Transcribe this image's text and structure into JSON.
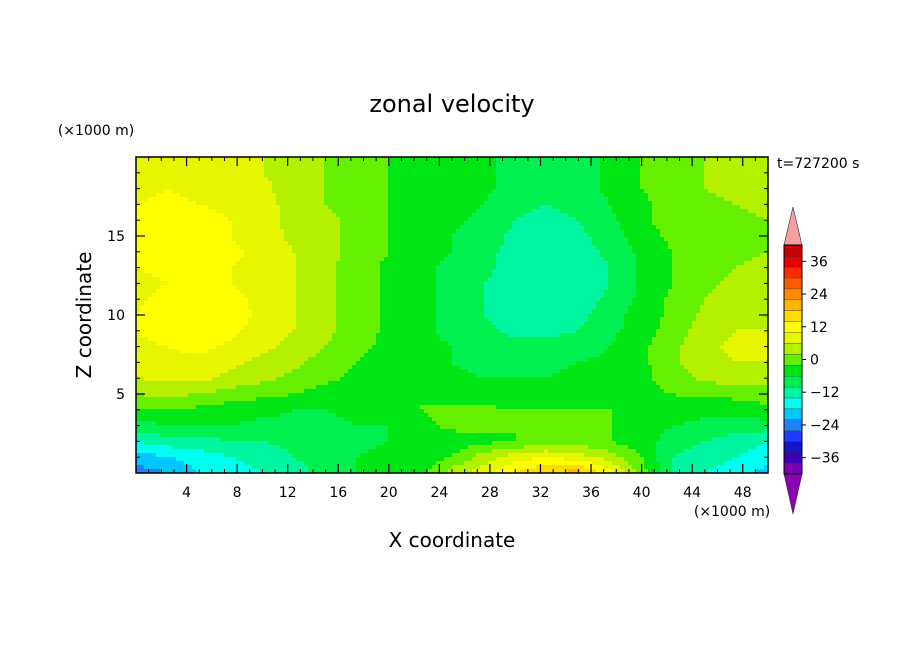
{
  "chart_data": {
    "type": "heatmap",
    "title": "zonal velocity",
    "xlabel": "X coordinate",
    "ylabel": "Z coordinate",
    "x_unit": "(×1000 m)",
    "y_unit": "(×1000 m)",
    "time_label": "t=727200 s",
    "xlim": [
      0,
      50
    ],
    "ylim": [
      0,
      20
    ],
    "x_ticks": [
      4,
      8,
      12,
      16,
      20,
      24,
      28,
      32,
      36,
      40,
      44,
      48
    ],
    "y_ticks": [
      5,
      10,
      15
    ],
    "colorbar": {
      "min": -42,
      "max": 42,
      "step": 4,
      "tick_values": [
        36,
        24,
        12,
        0,
        -12,
        -24,
        -36
      ],
      "tick_labels": [
        "36",
        "24",
        "12",
        "0",
        "−12",
        "−24",
        "−36"
      ],
      "colors": [
        "#7a00b4",
        "#3c00b4",
        "#1414c8",
        "#1e3cff",
        "#1e82ff",
        "#00c8ff",
        "#00fff0",
        "#00f5a0",
        "#00f050",
        "#00e614",
        "#64f000",
        "#b4f000",
        "#e6f500",
        "#ffff00",
        "#ffdc00",
        "#ffb400",
        "#ff8c00",
        "#ff5a00",
        "#ff2800",
        "#e60000",
        "#c80000"
      ],
      "under_color": "#8c00b4",
      "over_color": "#f4a0a0"
    },
    "field_description_values": {
      "x": [
        0,
        2.5,
        5,
        7.5,
        10,
        12.5,
        15,
        17.5,
        20,
        22.5,
        25,
        27.5,
        30,
        32.5,
        35,
        37.5,
        40,
        42.5,
        45,
        47.5,
        50
      ],
      "z": [
        0,
        1,
        2,
        3,
        4,
        5,
        6,
        7,
        8,
        9,
        10,
        11,
        12,
        13,
        14,
        15,
        16,
        17,
        18,
        19,
        20
      ],
      "values": [
        [
          -24,
          -22,
          -18,
          -16,
          -14,
          -12,
          -8,
          -6,
          -5,
          -4,
          4,
          8,
          14,
          18,
          20,
          12,
          0,
          -10,
          -14,
          -16,
          -20
        ],
        [
          -20,
          -18,
          -16,
          -14,
          -12,
          -10,
          -8,
          -6,
          -5,
          -4,
          -2,
          4,
          8,
          10,
          8,
          4,
          -2,
          -10,
          -12,
          -14,
          -16
        ],
        [
          -14,
          -12,
          -12,
          -10,
          -10,
          -9,
          -8,
          -7,
          -6,
          -5,
          -4,
          -3,
          -2,
          0,
          0,
          -2,
          -4,
          -8,
          -10,
          -12,
          -14
        ],
        [
          -8,
          -6,
          -6,
          -6,
          -7,
          -7,
          -7,
          -6,
          -6,
          -3,
          -1,
          -1,
          -2,
          -2,
          -2,
          -2,
          -4,
          -6,
          -7,
          -8,
          -8
        ],
        [
          -2,
          -2,
          -3,
          -4,
          -5,
          -6,
          -6,
          -5,
          -4,
          -2,
          -1,
          -1,
          -2,
          -2,
          -2,
          -2,
          -3,
          -4,
          -5,
          -4,
          -3
        ],
        [
          2,
          3,
          2,
          0,
          -1,
          -2,
          -4,
          -5,
          -4,
          -2,
          -4,
          -5,
          -4,
          -4,
          -4,
          -4,
          -3,
          -2,
          -1,
          -1,
          0
        ],
        [
          6,
          7,
          7,
          5,
          3,
          1,
          -1,
          -3,
          -4,
          -4,
          -5,
          -6,
          -6,
          -6,
          -5,
          -4,
          -3,
          0,
          3,
          4,
          4
        ],
        [
          8,
          9,
          9,
          7,
          5,
          3,
          0,
          -2,
          -4,
          -5,
          -6,
          -7,
          -7,
          -7,
          -6,
          -5,
          -3,
          1,
          5,
          6,
          6
        ],
        [
          9,
          10,
          11,
          9,
          7,
          5,
          2,
          -1,
          -3,
          -5,
          -6,
          -8,
          -9,
          -9,
          -8,
          -6,
          -3,
          1,
          5,
          7,
          6
        ],
        [
          10,
          12,
          13,
          11,
          8,
          6,
          3,
          0,
          -3,
          -5,
          -7,
          -9,
          -11,
          -11,
          -10,
          -7,
          -4,
          0,
          4,
          6,
          6
        ],
        [
          10,
          13,
          14,
          12,
          9,
          6,
          3,
          0,
          -3,
          -5,
          -7,
          -10,
          -13,
          -13,
          -11,
          -8,
          -4,
          -1,
          3,
          5,
          6
        ],
        [
          9,
          12,
          13,
          11,
          9,
          6,
          3,
          0,
          -3,
          -5,
          -7,
          -10,
          -13,
          -14,
          -12,
          -9,
          -5,
          -1,
          2,
          4,
          5
        ],
        [
          8,
          10,
          11,
          10,
          8,
          6,
          3,
          0,
          -3,
          -5,
          -7,
          -10,
          -12,
          -14,
          -13,
          -10,
          -5,
          -2,
          1,
          3,
          4
        ],
        [
          10,
          12,
          12,
          10,
          8,
          6,
          3,
          0,
          -3,
          -5,
          -7,
          -9,
          -12,
          -13,
          -13,
          -10,
          -5,
          -2,
          1,
          2,
          3
        ],
        [
          12,
          14,
          13,
          11,
          9,
          6,
          3,
          1,
          -2,
          -4,
          -6,
          -9,
          -11,
          -13,
          -12,
          -9,
          -5,
          -2,
          0,
          1,
          2
        ],
        [
          13,
          14,
          13,
          10,
          8,
          5,
          3,
          1,
          -2,
          -4,
          -6,
          -8,
          -11,
          -12,
          -11,
          -8,
          -4,
          -1,
          0,
          1,
          2
        ],
        [
          12,
          13,
          12,
          10,
          7,
          5,
          3,
          1,
          -2,
          -4,
          -5,
          -7,
          -10,
          -11,
          -10,
          -7,
          -3,
          0,
          1,
          1,
          2
        ],
        [
          10,
          11,
          10,
          9,
          7,
          5,
          2,
          0,
          -2,
          -3,
          -4,
          -6,
          -9,
          -10,
          -9,
          -6,
          -3,
          0,
          1,
          2,
          3
        ],
        [
          9,
          10,
          9,
          8,
          7,
          4,
          2,
          0,
          -2,
          -3,
          -4,
          -5,
          -8,
          -9,
          -8,
          -5,
          -2,
          0,
          2,
          3,
          4
        ],
        [
          9,
          9,
          9,
          8,
          6,
          4,
          2,
          0,
          -2,
          -3,
          -4,
          -5,
          -8,
          -9,
          -8,
          -5,
          -2,
          0,
          2,
          4,
          5
        ],
        [
          9,
          9,
          9,
          8,
          6,
          4,
          2,
          0,
          -2,
          -3,
          -4,
          -5,
          -8,
          -9,
          -8,
          -5,
          -2,
          0,
          2,
          4,
          5
        ]
      ]
    }
  }
}
